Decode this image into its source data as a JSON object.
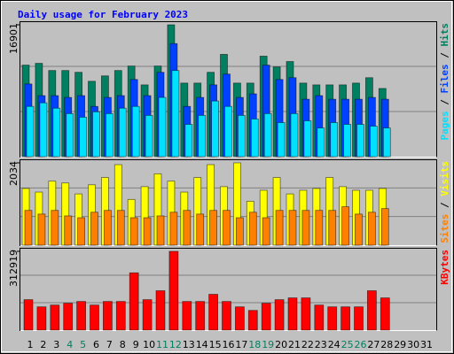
{
  "title": "Daily usage for February 2023",
  "legend_separator": " / ",
  "chart_data": [
    {
      "type": "bar",
      "ylim": [
        0,
        16901
      ],
      "yticks": [
        16901
      ],
      "series": [
        {
          "name": "Pages",
          "color": "#00e0ff",
          "values": [
            6440,
            6900,
            6210,
            5520,
            5060,
            5750,
            5520,
            6210,
            6440,
            5290,
            7590,
            11040,
            4140,
            5290,
            7130,
            6440,
            5290,
            4830,
            5520,
            4370,
            5520,
            4600,
            3680,
            4370,
            4140,
            4140,
            3910,
            3680,
            null,
            null,
            null
          ]
        },
        {
          "name": "Files",
          "color": "#0040ff",
          "values": [
            9315,
            7820,
            7820,
            7590,
            7820,
            6440,
            7590,
            7820,
            9890,
            7820,
            10810,
            14490,
            6440,
            7590,
            9200,
            10580,
            7590,
            8050,
            11730,
            9890,
            10120,
            7360,
            7820,
            7360,
            7360,
            7360,
            7590,
            7360,
            null,
            null,
            null
          ]
        },
        {
          "name": "Hits",
          "color": "#008060",
          "values": [
            11730,
            11960,
            11040,
            11040,
            10810,
            9660,
            10350,
            11040,
            11615,
            9200,
            11615,
            16901,
            9430,
            9430,
            10810,
            13110,
            9430,
            9430,
            12880,
            11500,
            12190,
            9430,
            9200,
            9200,
            9200,
            9430,
            10120,
            8740,
            null,
            null,
            null
          ]
        }
      ]
    },
    {
      "type": "bar",
      "ylim": [
        0,
        2034
      ],
      "yticks": [
        2034
      ],
      "series": [
        {
          "name": "Sites",
          "color": "#ff8000",
          "values": [
            859,
            768,
            859,
            723,
            678,
            814,
            859,
            859,
            678,
            678,
            723,
            814,
            859,
            768,
            859,
            859,
            678,
            814,
            678,
            859,
            859,
            859,
            859,
            859,
            949,
            768,
            814,
            904,
            null,
            null,
            null
          ]
        },
        {
          "name": "Visits",
          "color": "#ffff00",
          "values": [
            1401,
            1311,
            1582,
            1537,
            1266,
            1492,
            1672,
            1989,
            1130,
            1446,
            1763,
            1582,
            1311,
            1672,
            1989,
            1446,
            2034,
            1085,
            1356,
            1672,
            1266,
            1356,
            1401,
            1672,
            1446,
            1356,
            1356,
            1401,
            null,
            null,
            null
          ]
        }
      ]
    },
    {
      "type": "bar",
      "ylim": [
        0,
        312919
      ],
      "yticks": [
        312919
      ],
      "categories": [
        "1",
        "2",
        "3",
        "4",
        "5",
        "6",
        "7",
        "8",
        "9",
        "10",
        "11",
        "12",
        "13",
        "14",
        "15",
        "16",
        "17",
        "18",
        "19",
        "20",
        "21",
        "22",
        "23",
        "24",
        "25",
        "26",
        "27",
        "28",
        "29",
        "30",
        "31"
      ],
      "category_colors": [
        "#000000",
        "#000000",
        "#000000",
        "#008060",
        "#008060",
        "#000000",
        "#000000",
        "#000000",
        "#000000",
        "#000000",
        "#008060",
        "#008060",
        "#000000",
        "#000000",
        "#000000",
        "#000000",
        "#000000",
        "#008060",
        "#008060",
        "#000000",
        "#000000",
        "#000000",
        "#000000",
        "#000000",
        "#008060",
        "#008060",
        "#000000",
        "#000000",
        "#000000",
        "#000000",
        "#000000"
      ],
      "series": [
        {
          "name": "KBytes",
          "color": "#ff0000",
          "values": [
            120904,
            92456,
            99568,
            106680,
            113792,
            99568,
            113792,
            113792,
            227584,
            120904,
            156464,
            312919,
            113792,
            113792,
            142240,
            113792,
            92456,
            78232,
            106680,
            120904,
            128016,
            128016,
            99568,
            92456,
            92456,
            92456,
            156464,
            128016,
            null,
            null,
            null
          ]
        }
      ]
    }
  ]
}
